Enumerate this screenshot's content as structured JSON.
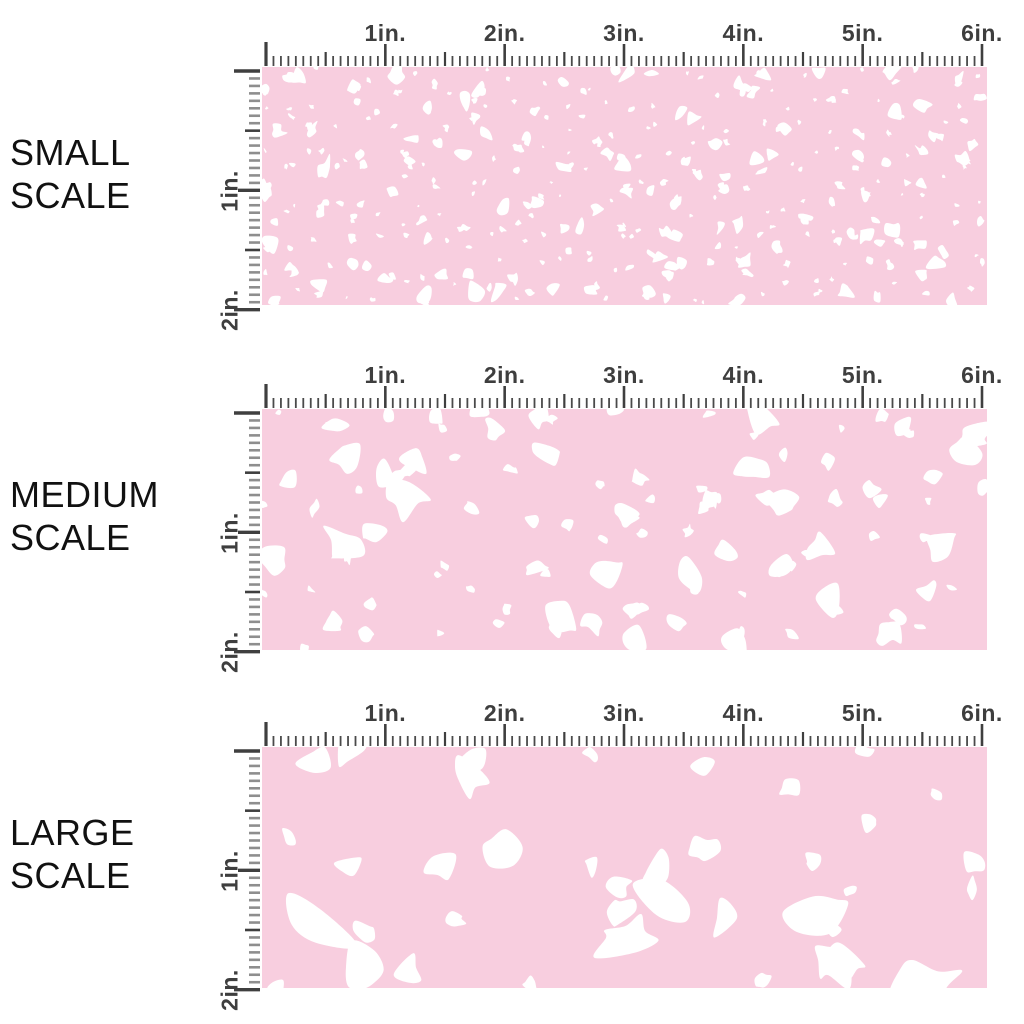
{
  "colors": {
    "swatch_pink": "#F8CEDF",
    "spot_white": "#FFFFFF",
    "tick_dark": "#3F3F3F",
    "tick_minor_h": "#4A4A4A",
    "tick_minor_v": "#8E8E8E",
    "ruler_label_color": "#3E3E3E",
    "scale_label_color": "#111111"
  },
  "ruler": {
    "horizontal_labels": [
      "1in.",
      "2in.",
      "3in.",
      "4in.",
      "5in.",
      "6in."
    ],
    "vertical_labels": [
      "1in.",
      "2in."
    ],
    "inches_horizontal": 6,
    "inches_vertical": 2,
    "ticks_per_inch": 16
  },
  "sections": [
    {
      "id": "small",
      "label_lines": [
        "SMALL",
        "SCALE"
      ],
      "pattern": {
        "seed": 7,
        "spot_count": 300,
        "min_radius": 1.8,
        "max_radius": 8.5
      }
    },
    {
      "id": "medium",
      "label_lines": [
        "MEDIUM",
        "SCALE"
      ],
      "pattern": {
        "seed": 13,
        "spot_count": 88,
        "min_radius": 4,
        "max_radius": 18
      }
    },
    {
      "id": "large",
      "label_lines": [
        "LARGE",
        "SCALE"
      ],
      "pattern": {
        "seed": 5,
        "spot_count": 33,
        "min_radius": 7,
        "max_radius": 32
      }
    }
  ]
}
